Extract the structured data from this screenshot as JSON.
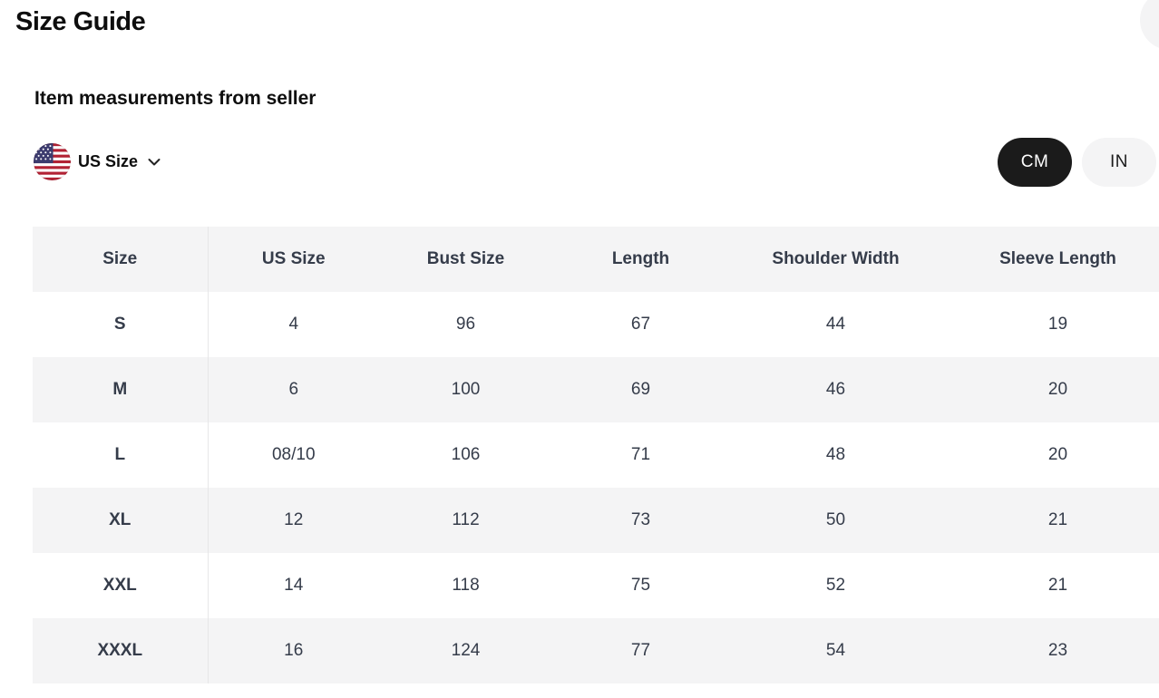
{
  "header": {
    "title": "Size Guide",
    "close_glyph": "✕"
  },
  "section": {
    "heading": "Item measurements from seller"
  },
  "region_selector": {
    "label": "US Size",
    "flag_icon": "us-flag-icon",
    "chevron_icon": "chevron-down-icon"
  },
  "unit_toggle": {
    "options": [
      {
        "label": "CM",
        "selected": true
      },
      {
        "label": "IN",
        "selected": false
      }
    ]
  },
  "size_table": {
    "columns": [
      "Size",
      "US Size",
      "Bust Size",
      "Length",
      "Shoulder Width",
      "Sleeve Length"
    ],
    "rows": [
      [
        "S",
        "4",
        "96",
        "67",
        "44",
        "19"
      ],
      [
        "M",
        "6",
        "100",
        "69",
        "46",
        "20"
      ],
      [
        "L",
        "08/10",
        "106",
        "71",
        "48",
        "20"
      ],
      [
        "XL",
        "12",
        "112",
        "73",
        "50",
        "21"
      ],
      [
        "XXL",
        "14",
        "118",
        "75",
        "52",
        "21"
      ],
      [
        "XXXL",
        "16",
        "124",
        "77",
        "54",
        "23"
      ]
    ]
  },
  "colors": {
    "selected_pill_bg": "#1b1b1b",
    "selected_pill_text": "#ffffff",
    "unselected_pill_bg": "#f4f4f5",
    "row_stripe": "#f4f4f5",
    "table_text": "#353c4a",
    "divider": "#e7e7e8",
    "flag_red": "#b22234",
    "flag_blue": "#3c3b6e"
  }
}
